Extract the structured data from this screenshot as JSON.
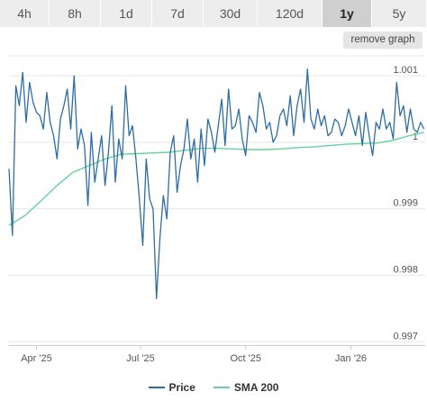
{
  "timeframes": {
    "items": [
      "4h",
      "8h",
      "1d",
      "7d",
      "30d",
      "120d",
      "1y",
      "5y"
    ],
    "active": "1y"
  },
  "remove_graph_label": "remove graph",
  "colors": {
    "price": "#2e6da4",
    "sma": "#66d39a",
    "grid": "#e6e6e6"
  },
  "chart_data": {
    "type": "line",
    "x_ticks": [
      "Apr '25",
      "Jul '25",
      "Oct '25",
      "Jan '26"
    ],
    "x_tick_positions": [
      "2025-04-01",
      "2025-07-01",
      "2025-10-01",
      "2026-01-01"
    ],
    "xlim": [
      "2025-03-08",
      "2026-03-07"
    ],
    "y_ticks": [
      0.997,
      0.998,
      0.999,
      1,
      1.001
    ],
    "y_tick_labels": [
      "0.997",
      "0.998",
      "0.999",
      "1",
      "1.001"
    ],
    "ylim": [
      0.99695,
      1.0013
    ],
    "grid": "horizontal",
    "legend_position": "bottom-center",
    "series": [
      {
        "name": "Price",
        "x": [
          "2025-03-08",
          "2025-03-11",
          "2025-03-14",
          "2025-03-17",
          "2025-03-20",
          "2025-03-23",
          "2025-03-26",
          "2025-03-29",
          "2025-04-01",
          "2025-04-04",
          "2025-04-07",
          "2025-04-10",
          "2025-04-13",
          "2025-04-16",
          "2025-04-19",
          "2025-04-22",
          "2025-04-25",
          "2025-04-28",
          "2025-05-01",
          "2025-05-04",
          "2025-05-07",
          "2025-05-10",
          "2025-05-13",
          "2025-05-16",
          "2025-05-19",
          "2025-05-22",
          "2025-05-25",
          "2025-05-28",
          "2025-05-31",
          "2025-06-03",
          "2025-06-06",
          "2025-06-09",
          "2025-06-12",
          "2025-06-15",
          "2025-06-18",
          "2025-06-21",
          "2025-06-24",
          "2025-06-27",
          "2025-06-30",
          "2025-07-03",
          "2025-07-06",
          "2025-07-09",
          "2025-07-12",
          "2025-07-15",
          "2025-07-18",
          "2025-07-21",
          "2025-07-24",
          "2025-07-27",
          "2025-07-30",
          "2025-08-02",
          "2025-08-05",
          "2025-08-08",
          "2025-08-11",
          "2025-08-14",
          "2025-08-17",
          "2025-08-20",
          "2025-08-23",
          "2025-08-26",
          "2025-08-29",
          "2025-09-01",
          "2025-09-04",
          "2025-09-07",
          "2025-09-10",
          "2025-09-13",
          "2025-09-16",
          "2025-09-19",
          "2025-09-22",
          "2025-09-25",
          "2025-09-28",
          "2025-10-01",
          "2025-10-04",
          "2025-10-07",
          "2025-10-10",
          "2025-10-13",
          "2025-10-16",
          "2025-10-19",
          "2025-10-22",
          "2025-10-25",
          "2025-10-28",
          "2025-10-31",
          "2025-11-03",
          "2025-11-06",
          "2025-11-09",
          "2025-11-12",
          "2025-11-15",
          "2025-11-18",
          "2025-11-21",
          "2025-11-24",
          "2025-11-27",
          "2025-11-30",
          "2025-12-03",
          "2025-12-06",
          "2025-12-09",
          "2025-12-12",
          "2025-12-15",
          "2025-12-18",
          "2025-12-21",
          "2025-12-24",
          "2025-12-27",
          "2025-12-30",
          "2026-01-02",
          "2026-01-05",
          "2026-01-08",
          "2026-01-11",
          "2026-01-14",
          "2026-01-17",
          "2026-01-20",
          "2026-01-23",
          "2026-01-26",
          "2026-01-29",
          "2026-02-01",
          "2026-02-04",
          "2026-02-07",
          "2026-02-10",
          "2026-02-13",
          "2026-02-16",
          "2026-02-19",
          "2026-02-22",
          "2026-02-25",
          "2026-02-28",
          "2026-03-03",
          "2026-03-06"
        ],
        "values": [
          0.9996,
          0.9986,
          1.00085,
          1.00055,
          1.00105,
          1.0003,
          1.0009,
          1.0006,
          1.00045,
          1.0004,
          1.0002,
          1.00075,
          1.0003,
          1.0001,
          0.99975,
          1.00035,
          1.00055,
          1.0008,
          1.0002,
          1.001,
          0.9999,
          1.0002,
          0.99995,
          0.99905,
          1.00015,
          0.9994,
          0.99975,
          1.0001,
          0.99935,
          0.99985,
          1.00055,
          0.9994,
          1.00005,
          0.99975,
          1.00085,
          1.0001,
          1.00025,
          0.99975,
          0.99915,
          0.99845,
          0.99975,
          0.99915,
          0.999,
          0.99765,
          0.99855,
          0.9992,
          0.99885,
          0.99985,
          1.0001,
          0.99925,
          0.99965,
          0.9999,
          1.00035,
          0.99975,
          1.00005,
          0.9994,
          1.0002,
          0.99965,
          1.00035,
          1.00015,
          0.99985,
          1.00025,
          1.00065,
          0.99995,
          1.0008,
          1.0002,
          1.00025,
          1.0005,
          1.00005,
          0.9998,
          1.0004,
          1.0003,
          1.00015,
          1.00075,
          1.00055,
          1.0002,
          1.0003,
          1.0,
          1.0001,
          1.0004,
          1.0005,
          1.00025,
          1.0007,
          1.0001,
          1.00055,
          1.0008,
          1.0003,
          1.0011,
          1.00035,
          1.0002,
          1.0005,
          1.00025,
          1.0004,
          1.0001,
          1.00015,
          1.00035,
          1.0003,
          1.0001,
          1.00025,
          1.0005,
          1.0003,
          1.0001,
          1.0004,
          0.99995,
          1.00045,
          1.0001,
          0.9998,
          1.0003,
          1.0002,
          1.0005,
          1.0002,
          1.0003,
          1.00005,
          1.0009,
          1.0004,
          1.00055,
          1.00015,
          1.0005,
          1.0002,
          1.00015,
          1.0003,
          1.0002
        ]
      },
      {
        "name": "SMA 200",
        "x": [
          "2025-03-08",
          "2025-03-22",
          "2025-04-05",
          "2025-04-19",
          "2025-05-03",
          "2025-05-17",
          "2025-05-31",
          "2025-06-14",
          "2025-06-28",
          "2025-07-12",
          "2025-07-26",
          "2025-08-09",
          "2025-08-23",
          "2025-09-06",
          "2025-09-20",
          "2025-10-04",
          "2025-10-18",
          "2025-11-01",
          "2025-11-15",
          "2025-11-29",
          "2025-12-13",
          "2025-12-27",
          "2026-01-10",
          "2026-01-24",
          "2026-02-07",
          "2026-02-21",
          "2026-03-06"
        ],
        "values": [
          0.99875,
          0.9989,
          0.99912,
          0.99935,
          0.99955,
          0.99965,
          0.99975,
          0.99982,
          0.99983,
          0.99984,
          0.99985,
          0.99988,
          0.99991,
          0.99991,
          0.9999,
          0.99989,
          0.99989,
          0.9999,
          0.99992,
          0.99993,
          0.99995,
          0.99997,
          0.99998,
          0.99999,
          1.00003,
          1.0001,
          1.00015
        ]
      }
    ]
  }
}
